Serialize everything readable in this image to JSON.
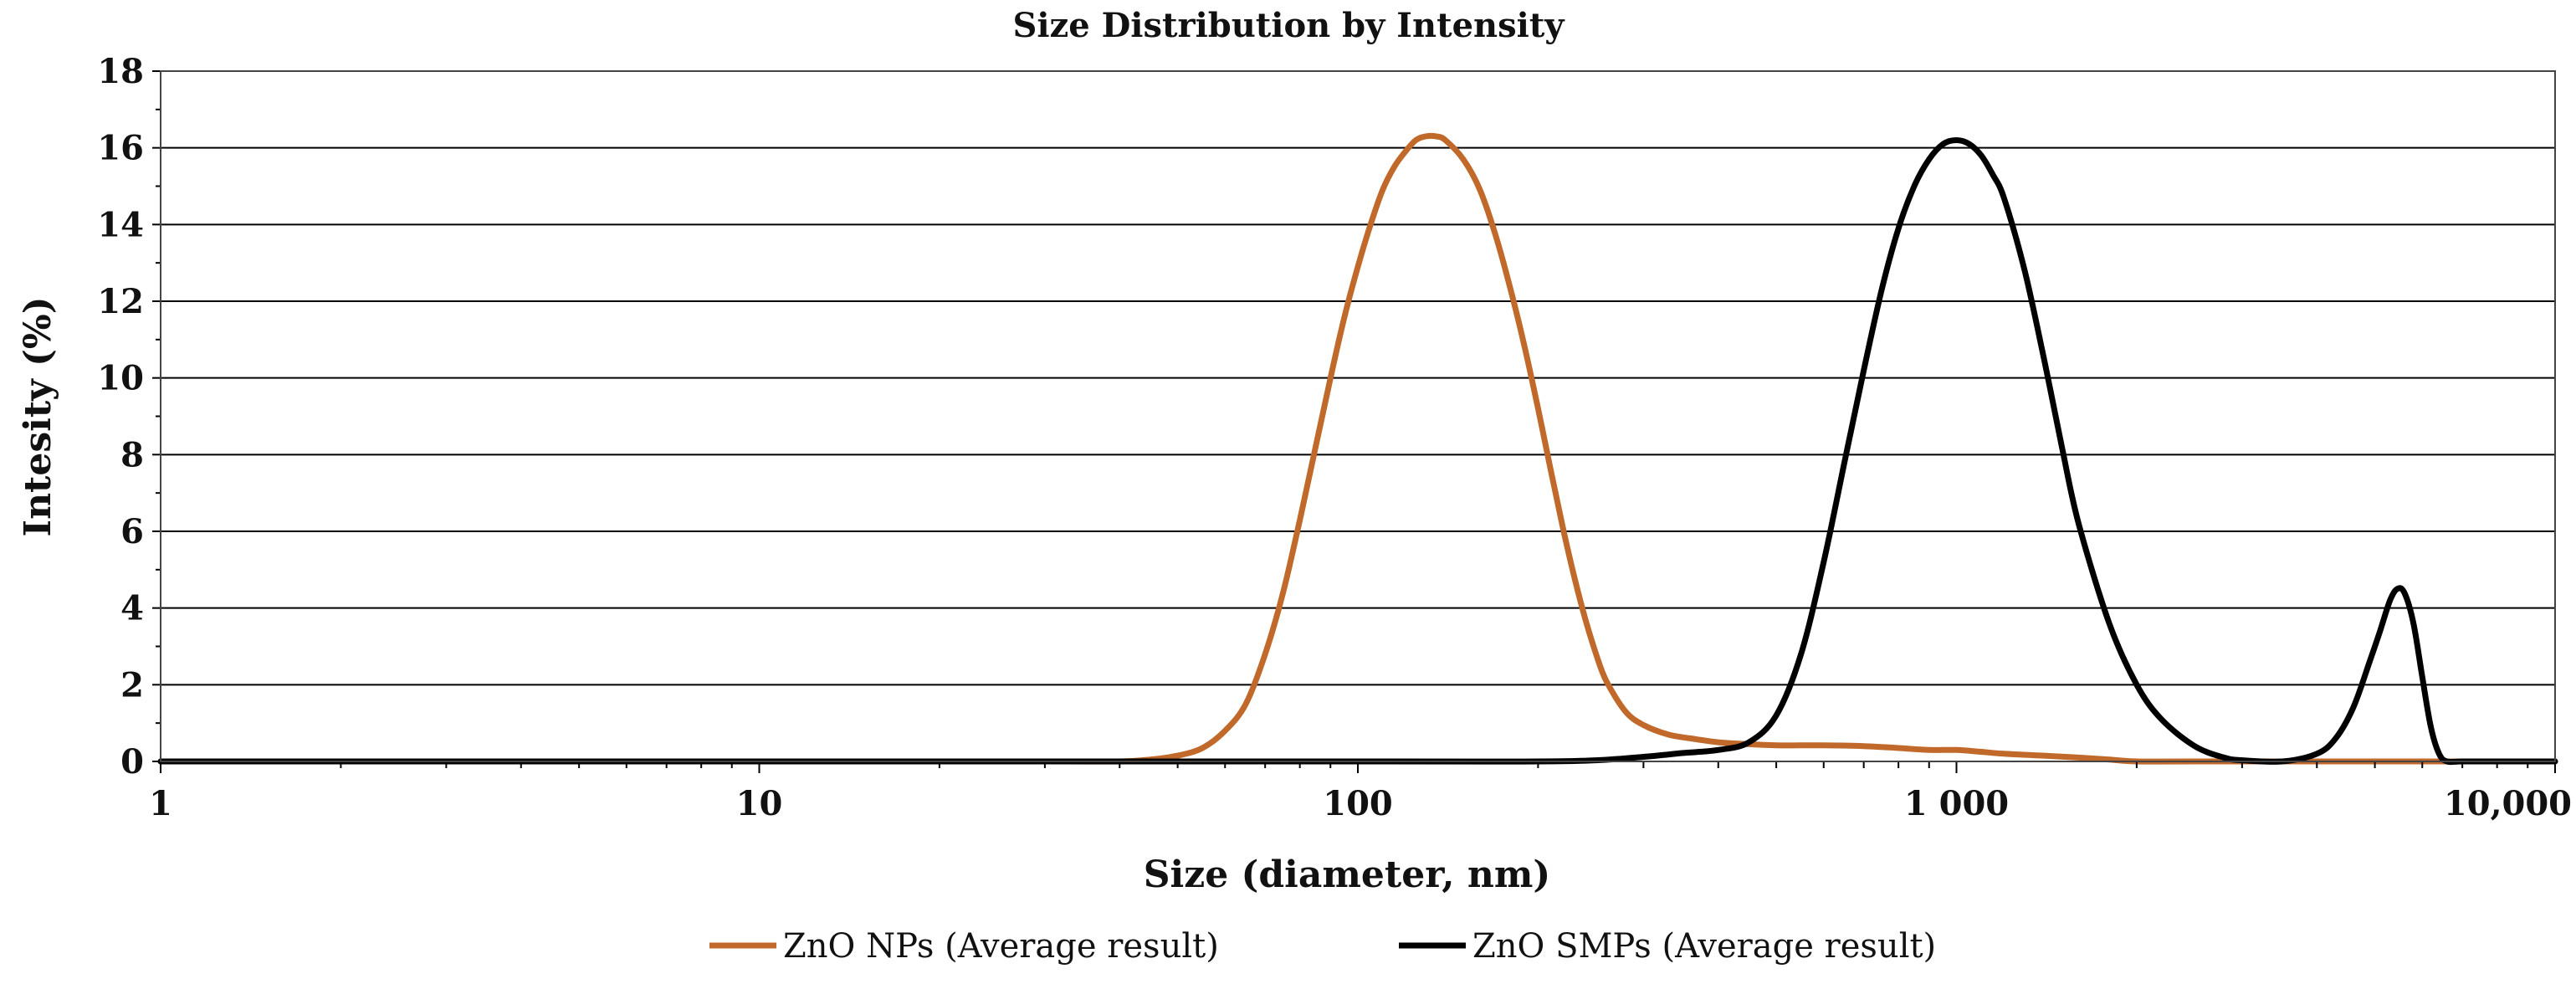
{
  "chart_data": {
    "type": "line",
    "title": "Size Distribution by Intensity",
    "xlabel": "Size (diameter, nm)",
    "ylabel": "Intesity (%)",
    "xscale": "log",
    "xlim": [
      1,
      10000
    ],
    "ylim": [
      0,
      18
    ],
    "x_ticks": [
      1,
      10,
      100,
      1000,
      10000
    ],
    "x_tick_labels": [
      "1",
      "10",
      "100",
      "1 000",
      "10,000"
    ],
    "y_ticks": [
      0,
      2,
      4,
      6,
      8,
      10,
      12,
      14,
      16,
      18
    ],
    "y_tick_labels": [
      "0",
      "2",
      "4",
      "6",
      "8",
      "10",
      "12",
      "14",
      "16",
      "18"
    ],
    "grid": "horizontal",
    "legend_position": "bottom",
    "series": [
      {
        "name": "ZnO NPs (Average result)",
        "color": "#c0692a",
        "x": [
          1,
          10,
          30,
          40,
          45,
          50,
          55,
          60,
          65,
          70,
          75,
          80,
          85,
          90,
          95,
          100,
          105,
          110,
          115,
          120,
          125,
          130,
          135,
          140,
          150,
          160,
          170,
          180,
          190,
          200,
          210,
          220,
          230,
          240,
          250,
          260,
          280,
          300,
          330,
          360,
          400,
          450,
          500,
          550,
          600,
          700,
          800,
          900,
          1000,
          1100,
          1200,
          1400,
          1600,
          1800,
          2000,
          2500,
          5000,
          10000
        ],
        "values": [
          0,
          0,
          0,
          0,
          0.05,
          0.15,
          0.35,
          0.8,
          1.5,
          2.8,
          4.4,
          6.3,
          8.2,
          10.0,
          11.6,
          12.9,
          14.0,
          14.9,
          15.5,
          15.9,
          16.2,
          16.3,
          16.3,
          16.2,
          15.7,
          14.9,
          13.7,
          12.3,
          10.8,
          9.2,
          7.6,
          6.1,
          4.8,
          3.7,
          2.8,
          2.1,
          1.3,
          0.95,
          0.7,
          0.6,
          0.5,
          0.45,
          0.42,
          0.42,
          0.42,
          0.4,
          0.35,
          0.3,
          0.3,
          0.25,
          0.2,
          0.15,
          0.1,
          0.05,
          0,
          0,
          0,
          0
        ]
      },
      {
        "name": "ZnO SMPs (Average result)",
        "color": "#000000",
        "x": [
          1,
          100,
          200,
          250,
          300,
          350,
          400,
          450,
          500,
          550,
          600,
          650,
          700,
          750,
          800,
          850,
          900,
          950,
          1000,
          1050,
          1100,
          1150,
          1200,
          1300,
          1400,
          1500,
          1600,
          1800,
          2000,
          2200,
          2500,
          2800,
          3000,
          3500,
          4000,
          4300,
          4600,
          4900,
          5100,
          5300,
          5450,
          5600,
          5800,
          6000,
          6200,
          6400,
          6600,
          7000,
          8000,
          10000
        ],
        "values": [
          0,
          0,
          0,
          0.03,
          0.12,
          0.22,
          0.3,
          0.5,
          1.2,
          2.8,
          5.2,
          7.8,
          10.2,
          12.3,
          13.9,
          15.0,
          15.7,
          16.1,
          16.2,
          16.1,
          15.8,
          15.3,
          14.7,
          12.8,
          10.5,
          8.2,
          6.2,
          3.6,
          2.0,
          1.1,
          0.4,
          0.1,
          0.03,
          0,
          0.2,
          0.6,
          1.4,
          2.6,
          3.4,
          4.2,
          4.5,
          4.4,
          3.6,
          2.2,
          0.9,
          0.2,
          0,
          0,
          0,
          0
        ]
      }
    ]
  }
}
